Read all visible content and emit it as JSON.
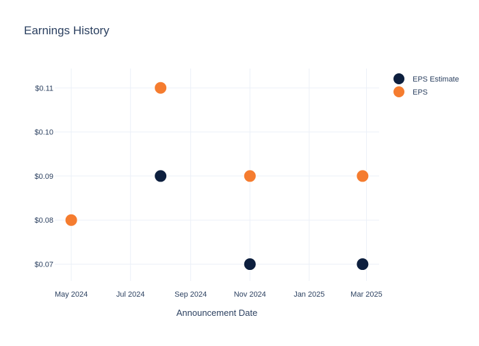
{
  "chart_data": {
    "type": "scatter",
    "title": "Earnings History",
    "xlabel": "Announcement Date",
    "ylabel": "",
    "x_ticks": [
      "May 2024",
      "Jul 2024",
      "Sep 2024",
      "Nov 2024",
      "Jan 2025",
      "Mar 2025"
    ],
    "x_tick_dates": [
      "2024-05-01",
      "2024-07-01",
      "2024-09-01",
      "2024-11-01",
      "2025-01-01",
      "2025-03-01"
    ],
    "xlim": [
      "2024-04-14",
      "2025-03-14"
    ],
    "y_ticks": [
      "$0.07",
      "$0.08",
      "$0.09",
      "$0.10",
      "$0.11"
    ],
    "y_tick_values": [
      0.07,
      0.08,
      0.09,
      0.1,
      0.11
    ],
    "ylim": [
      0.0662,
      0.1144
    ],
    "grid": true,
    "legend_position": "top-right",
    "series": [
      {
        "name": "EPS Estimate",
        "color": "#0d1f3e",
        "points": [
          {
            "x": "2024-05-01",
            "y": 0.08
          },
          {
            "x": "2024-08-01",
            "y": 0.09
          },
          {
            "x": "2024-11-01",
            "y": 0.07
          },
          {
            "x": "2025-02-25",
            "y": 0.07
          }
        ]
      },
      {
        "name": "EPS",
        "color": "#f57c2f",
        "points": [
          {
            "x": "2024-05-01",
            "y": 0.08
          },
          {
            "x": "2024-08-01",
            "y": 0.11
          },
          {
            "x": "2024-11-01",
            "y": 0.09
          },
          {
            "x": "2025-02-25",
            "y": 0.09
          }
        ]
      }
    ]
  }
}
